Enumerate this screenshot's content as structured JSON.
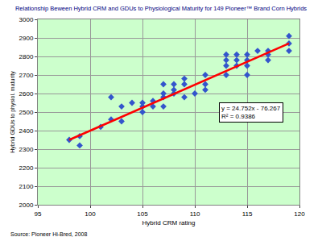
{
  "chart_data": {
    "type": "scatter",
    "title": "Relationship Beween Hybrid CRM and GDUs to Physiological Maturity for 149 Pioneer™ Brand Corn Hybrids",
    "x_label": "Hybrid CRM rating",
    "y_label": "Hybrid GDUs to physiol. maturity",
    "source": "Source: Pioneer Hi-Bred, 2008",
    "annotations": [
      "y = 24.752x - 76.267",
      "R² = 0.9386"
    ],
    "series": [
      {
        "type": "scatter",
        "color": "#3355cc",
        "marker": "diamond",
        "x": [
          98,
          99,
          99,
          101,
          102,
          102,
          103,
          103,
          104,
          105,
          105,
          105,
          106,
          106,
          107,
          107,
          107,
          107,
          108,
          108,
          108,
          109,
          109,
          109,
          110,
          111,
          111,
          111,
          113,
          113,
          113,
          113,
          114,
          114,
          114,
          115,
          115,
          115,
          115,
          116,
          117,
          117,
          117,
          119,
          119,
          119
        ],
        "values": [
          2350,
          2320,
          2370,
          2420,
          2580,
          2460,
          2450,
          2530,
          2550,
          2500,
          2530,
          2550,
          2530,
          2560,
          2530,
          2580,
          2600,
          2650,
          2600,
          2620,
          2650,
          2580,
          2650,
          2680,
          2600,
          2620,
          2650,
          2700,
          2700,
          2750,
          2780,
          2810,
          2750,
          2780,
          2810,
          2700,
          2750,
          2780,
          2810,
          2830,
          2780,
          2810,
          2830,
          2830,
          2870,
          2910
        ]
      },
      {
        "type": "line",
        "color": "#ff0000",
        "line_style": "solid",
        "x": [
          98,
          119
        ],
        "values": [
          2350,
          2870
        ]
      }
    ],
    "xlim": [
      95,
      120
    ],
    "xticks": [
      95,
      100,
      105,
      110,
      115,
      120
    ],
    "ylim": [
      2000,
      3000
    ],
    "yticks": [
      2000,
      2100,
      2200,
      2300,
      2400,
      2500,
      2600,
      2700,
      2800,
      2900,
      3000
    ],
    "grid": true
  }
}
